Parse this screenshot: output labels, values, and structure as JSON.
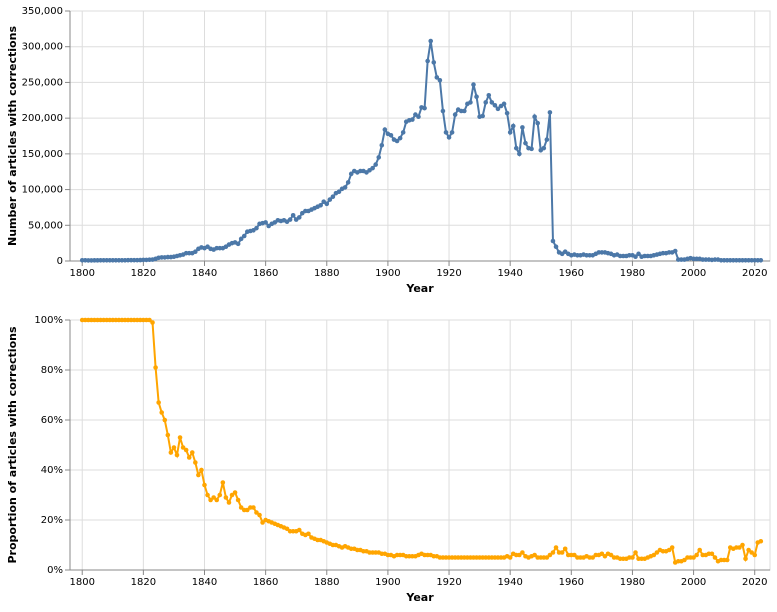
{
  "chart_data": [
    {
      "type": "line",
      "ylabel": "Number of articles with corrections",
      "xlabel": "Year",
      "color": "#4c78a8",
      "grid": true,
      "xlim": [
        1796,
        2025
      ],
      "xticks": [
        1800,
        1820,
        1840,
        1860,
        1880,
        1900,
        1920,
        1940,
        1960,
        1980,
        2000,
        2020
      ],
      "ylim": [
        0,
        350000
      ],
      "yticks": [
        0,
        {
          "value": 50000,
          "label": "50,000"
        },
        {
          "value": 100000,
          "label": "100,000"
        },
        {
          "value": 150000,
          "label": "150,000"
        },
        {
          "value": 200000,
          "label": "200,000"
        },
        {
          "value": 250000,
          "label": "250,000"
        },
        {
          "value": 300000,
          "label": "300,000"
        },
        {
          "value": 350000,
          "label": "350,000"
        }
      ],
      "x": [
        1800,
        1801,
        1802,
        1803,
        1804,
        1805,
        1806,
        1807,
        1808,
        1809,
        1810,
        1811,
        1812,
        1813,
        1814,
        1815,
        1816,
        1817,
        1818,
        1819,
        1820,
        1821,
        1822,
        1823,
        1824,
        1825,
        1826,
        1827,
        1828,
        1829,
        1830,
        1831,
        1832,
        1833,
        1834,
        1835,
        1836,
        1837,
        1838,
        1839,
        1840,
        1841,
        1842,
        1843,
        1844,
        1845,
        1846,
        1847,
        1848,
        1849,
        1850,
        1851,
        1852,
        1853,
        1854,
        1855,
        1856,
        1857,
        1858,
        1859,
        1860,
        1861,
        1862,
        1863,
        1864,
        1865,
        1866,
        1867,
        1868,
        1869,
        1870,
        1871,
        1872,
        1873,
        1874,
        1875,
        1876,
        1877,
        1878,
        1879,
        1880,
        1881,
        1882,
        1883,
        1884,
        1885,
        1886,
        1887,
        1888,
        1889,
        1890,
        1891,
        1892,
        1893,
        1894,
        1895,
        1896,
        1897,
        1898,
        1899,
        1900,
        1901,
        1902,
        1903,
        1904,
        1905,
        1906,
        1907,
        1908,
        1909,
        1910,
        1911,
        1912,
        1913,
        1914,
        1915,
        1916,
        1917,
        1918,
        1919,
        1920,
        1921,
        1922,
        1923,
        1924,
        1925,
        1926,
        1927,
        1928,
        1929,
        1930,
        1931,
        1932,
        1933,
        1934,
        1935,
        1936,
        1937,
        1938,
        1939,
        1940,
        1941,
        1942,
        1943,
        1944,
        1945,
        1946,
        1947,
        1948,
        1949,
        1950,
        1951,
        1952,
        1953,
        1954,
        1955,
        1956,
        1957,
        1958,
        1959,
        1960,
        1961,
        1962,
        1963,
        1964,
        1965,
        1966,
        1967,
        1968,
        1969,
        1970,
        1971,
        1972,
        1973,
        1974,
        1975,
        1976,
        1977,
        1978,
        1979,
        1980,
        1981,
        1982,
        1983,
        1984,
        1985,
        1986,
        1987,
        1988,
        1989,
        1990,
        1991,
        1992,
        1993,
        1994,
        1995,
        1996,
        1997,
        1998,
        1999,
        2000,
        2001,
        2002,
        2003,
        2004,
        2005,
        2006,
        2007,
        2008,
        2009,
        2010,
        2011,
        2012,
        2013,
        2014,
        2015,
        2016,
        2017,
        2018,
        2019,
        2020,
        2021,
        2022
      ],
      "values": [
        1000,
        1000,
        800,
        800,
        900,
        900,
        1000,
        1000,
        1000,
        1000,
        1000,
        1000,
        1000,
        1000,
        1000,
        1200,
        1200,
        1200,
        1200,
        1300,
        1500,
        1500,
        1800,
        2000,
        3000,
        4500,
        5000,
        5000,
        5500,
        5500,
        6000,
        7000,
        8000,
        9000,
        11000,
        11000,
        11000,
        13000,
        17000,
        19000,
        18000,
        20000,
        17000,
        16000,
        18000,
        18000,
        18000,
        20000,
        23000,
        25000,
        26000,
        24000,
        31000,
        35000,
        41000,
        42000,
        43000,
        46000,
        52000,
        53000,
        54000,
        49000,
        52000,
        54000,
        57000,
        56000,
        57000,
        55000,
        58000,
        64000,
        58000,
        61000,
        67000,
        70000,
        70000,
        72000,
        74000,
        76000,
        78000,
        83000,
        80000,
        86000,
        90000,
        95000,
        97000,
        101000,
        103000,
        110000,
        122000,
        126000,
        124000,
        126000,
        126000,
        124000,
        127000,
        130000,
        135000,
        145000,
        162000,
        184000,
        178000,
        176000,
        170000,
        168000,
        172000,
        180000,
        195000,
        197000,
        198000,
        205000,
        202000,
        215000,
        214000,
        280000,
        308000,
        278000,
        257000,
        253000,
        210000,
        180000,
        173000,
        180000,
        205000,
        212000,
        210000,
        210000,
        220000,
        222000,
        247000,
        230000,
        202000,
        203000,
        222000,
        232000,
        222000,
        218000,
        213000,
        217000,
        220000,
        207000,
        180000,
        189000,
        158000,
        150000,
        187000,
        165000,
        158000,
        157000,
        202000,
        193000,
        155000,
        158000,
        170000,
        208000,
        28000,
        20000,
        12000,
        10000,
        13000,
        10000,
        8000,
        9000,
        8000,
        8000,
        9000,
        8000,
        8000,
        8000,
        10000,
        12000,
        12000,
        12000,
        11000,
        10000,
        8000,
        9000,
        7000,
        7000,
        7000,
        8000,
        8000,
        6000,
        10000,
        6000,
        7000,
        7000,
        7000,
        8000,
        9000,
        10000,
        11000,
        11000,
        12000,
        12000,
        14000,
        2000,
        2000,
        2000,
        3000,
        4000,
        3000,
        3000,
        3000,
        2000,
        2000,
        2000,
        1500,
        2000,
        2000,
        1000,
        1000,
        1000,
        1000,
        1000,
        1000,
        1000,
        1000,
        1000,
        1000,
        1000,
        1000,
        1000,
        1000
      ]
    },
    {
      "type": "line",
      "ylabel": "Proportion of articles with corrections",
      "xlabel": "Year",
      "color": "#ffa500",
      "grid": true,
      "xlim": [
        1796,
        2025
      ],
      "xticks": [
        1800,
        1820,
        1840,
        1860,
        1880,
        1900,
        1920,
        1940,
        1960,
        1980,
        2000,
        2020
      ],
      "ylim": [
        0,
        100
      ],
      "yticks": [
        {
          "value": 0,
          "label": "0%"
        },
        {
          "value": 20,
          "label": "20%"
        },
        {
          "value": 40,
          "label": "40%"
        },
        {
          "value": 60,
          "label": "60%"
        },
        {
          "value": 80,
          "label": "80%"
        },
        {
          "value": 100,
          "label": "100%"
        }
      ],
      "x": [
        1800,
        1801,
        1802,
        1803,
        1804,
        1805,
        1806,
        1807,
        1808,
        1809,
        1810,
        1811,
        1812,
        1813,
        1814,
        1815,
        1816,
        1817,
        1818,
        1819,
        1820,
        1821,
        1822,
        1823,
        1824,
        1825,
        1826,
        1827,
        1828,
        1829,
        1830,
        1831,
        1832,
        1833,
        1834,
        1835,
        1836,
        1837,
        1838,
        1839,
        1840,
        1841,
        1842,
        1843,
        1844,
        1845,
        1846,
        1847,
        1848,
        1849,
        1850,
        1851,
        1852,
        1853,
        1854,
        1855,
        1856,
        1857,
        1858,
        1859,
        1860,
        1861,
        1862,
        1863,
        1864,
        1865,
        1866,
        1867,
        1868,
        1869,
        1870,
        1871,
        1872,
        1873,
        1874,
        1875,
        1876,
        1877,
        1878,
        1879,
        1880,
        1881,
        1882,
        1883,
        1884,
        1885,
        1886,
        1887,
        1888,
        1889,
        1890,
        1891,
        1892,
        1893,
        1894,
        1895,
        1896,
        1897,
        1898,
        1899,
        1900,
        1901,
        1902,
        1903,
        1904,
        1905,
        1906,
        1907,
        1908,
        1909,
        1910,
        1911,
        1912,
        1913,
        1914,
        1915,
        1916,
        1917,
        1918,
        1919,
        1920,
        1921,
        1922,
        1923,
        1924,
        1925,
        1926,
        1927,
        1928,
        1929,
        1930,
        1931,
        1932,
        1933,
        1934,
        1935,
        1936,
        1937,
        1938,
        1939,
        1940,
        1941,
        1942,
        1943,
        1944,
        1945,
        1946,
        1947,
        1948,
        1949,
        1950,
        1951,
        1952,
        1953,
        1954,
        1955,
        1956,
        1957,
        1958,
        1959,
        1960,
        1961,
        1962,
        1963,
        1964,
        1965,
        1966,
        1967,
        1968,
        1969,
        1970,
        1971,
        1972,
        1973,
        1974,
        1975,
        1976,
        1977,
        1978,
        1979,
        1980,
        1981,
        1982,
        1983,
        1984,
        1985,
        1986,
        1987,
        1988,
        1989,
        1990,
        1991,
        1992,
        1993,
        1994,
        1995,
        1996,
        1997,
        1998,
        1999,
        2000,
        2001,
        2002,
        2003,
        2004,
        2005,
        2006,
        2007,
        2008,
        2009,
        2010,
        2011,
        2012,
        2013,
        2014,
        2015,
        2016,
        2017,
        2018,
        2019,
        2020,
        2021,
        2022
      ],
      "values": [
        100,
        100,
        100,
        100,
        100,
        100,
        100,
        100,
        100,
        100,
        100,
        100,
        100,
        100,
        100,
        100,
        100,
        100,
        100,
        100,
        100,
        100,
        100,
        99,
        81,
        67,
        63,
        60,
        54,
        47,
        49,
        46,
        53,
        49,
        48,
        45,
        47,
        43,
        38,
        40,
        34,
        30,
        28,
        29,
        28,
        30,
        35,
        29,
        27,
        30,
        31,
        28,
        25,
        24,
        24,
        25,
        25,
        23,
        22,
        19,
        20,
        19.5,
        19,
        18.5,
        18,
        17.5,
        17,
        16.5,
        15.5,
        15.5,
        15.5,
        16,
        14.5,
        14,
        14.5,
        13,
        12.5,
        12,
        12,
        11.5,
        11,
        10.5,
        10,
        10,
        9.5,
        9,
        9.5,
        9,
        8.5,
        8.5,
        8,
        8,
        7.5,
        7.5,
        7,
        7,
        7,
        7,
        6.5,
        6.5,
        6,
        6,
        5.5,
        6,
        6,
        6,
        5.5,
        5.5,
        5.5,
        5.5,
        6,
        6.5,
        6,
        6,
        6,
        5.5,
        5.5,
        5,
        5,
        5,
        5,
        5,
        5,
        5,
        5,
        5,
        5,
        5,
        5,
        5,
        5,
        5,
        5,
        5,
        5,
        5,
        5,
        5,
        5,
        5.5,
        5,
        6.5,
        6,
        6,
        7,
        5.5,
        5,
        5.5,
        6,
        5,
        5,
        5,
        5,
        6,
        7,
        9,
        7,
        7,
        8.5,
        6,
        6,
        6,
        5,
        5,
        5,
        5.5,
        5,
        5,
        6,
        6,
        6.5,
        5.5,
        6.5,
        6,
        5,
        5,
        4.5,
        4.5,
        4.5,
        5,
        5,
        7,
        4.5,
        4.5,
        4.5,
        5,
        5.5,
        6,
        7,
        8,
        7.5,
        7.5,
        8,
        9,
        3,
        3.5,
        3.5,
        4,
        5,
        5,
        5,
        6,
        8,
        6,
        6,
        6.5,
        6.5,
        5,
        3.5,
        4,
        4,
        4,
        9,
        8.5,
        9,
        9,
        10,
        4.5,
        8,
        7,
        6,
        11,
        11.5
      ]
    }
  ]
}
